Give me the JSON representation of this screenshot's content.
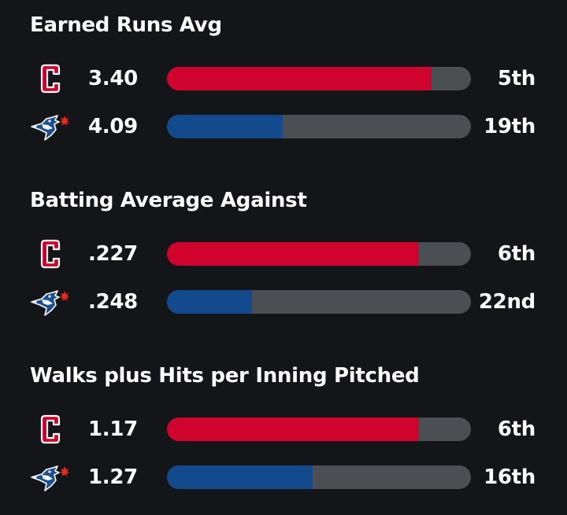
{
  "colors": {
    "background": "#141518",
    "track": "#4b4e53",
    "guardians": "#d0032e",
    "bluejays": "#134a8e"
  },
  "teams": {
    "guardians": {
      "icon": "guardians-c-logo-icon"
    },
    "bluejays": {
      "icon": "blue-jays-logo-icon"
    }
  },
  "chart_data": [
    {
      "type": "bar",
      "title": "Earned Runs Avg",
      "rows": [
        {
          "team": "guardians",
          "value": "3.40",
          "rank": "5th",
          "fill_fraction": 0.87
        },
        {
          "team": "bluejays",
          "value": "4.09",
          "rank": "19th",
          "fill_fraction": 0.38
        }
      ]
    },
    {
      "type": "bar",
      "title": "Batting Average Against",
      "rows": [
        {
          "team": "guardians",
          "value": ".227",
          "rank": "6th",
          "fill_fraction": 0.83
        },
        {
          "team": "bluejays",
          "value": ".248",
          "rank": "22nd",
          "fill_fraction": 0.28
        }
      ]
    },
    {
      "type": "bar",
      "title": "Walks plus Hits per Inning Pitched",
      "rows": [
        {
          "team": "guardians",
          "value": "1.17",
          "rank": "6th",
          "fill_fraction": 0.83
        },
        {
          "team": "bluejays",
          "value": "1.27",
          "rank": "16th",
          "fill_fraction": 0.48
        }
      ]
    }
  ]
}
